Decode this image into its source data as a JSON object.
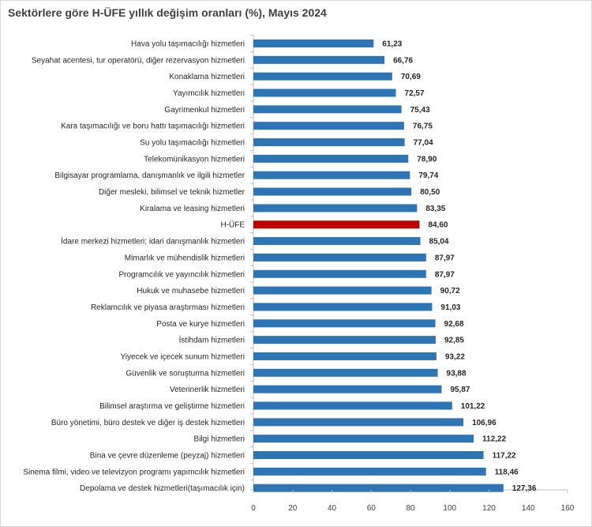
{
  "title": "Sektörlere göre H-ÜFE yıllık değişim oranları (%), Mayıs 2024",
  "chart_data": {
    "type": "bar",
    "orientation": "horizontal",
    "title": "Sektörlere göre H-ÜFE yıllık değişim oranları (%), Mayıs 2024",
    "categories": [
      "Hava yolu taşımacılığı hizmetleri",
      "Seyahat acentesi, tur operatörü, diğer rezervasyon hizmetleri",
      "Konaklama hizmetleri",
      "Yayımcılık hizmetleri",
      "Gayrimenkul hizmetleri",
      "Kara taşımacılığı ve boru hattı taşımacılığı hizmetleri",
      "Su yolu taşımacılığı hizmetleri",
      "Telekomünikasyon hizmetleri",
      "Bilgisayar programlama, danışmanlık ve ilgili hizmetler",
      "Diğer mesleki, bilimsel ve teknik hizmetler",
      "Kiralama ve leasing hizmetleri",
      "H-ÜFE",
      "İdare merkezi hizmetleri; idari danışmanlık hizmetleri",
      "Mimarlık ve mühendislik hizmetleri",
      "Programcılık ve yayıncılık hizmetleri",
      "Hukuk ve muhasebe hizmetleri",
      "Reklamcılık ve piyasa araştırması hizmetleri",
      "Posta ve kurye hizmetleri",
      "İstihdam hizmetleri",
      "Yiyecek ve içecek sunum hizmetleri",
      "Güvenlik ve soruşturma hizmetleri",
      "Veterinerlik hizmetleri",
      "Bilimsel araştırma ve geliştirme hizmetleri",
      "Büro yönetimi, büro destek ve diğer iş destek hizmetleri",
      "Bilgi hizmetleri",
      "Bina ve çevre düzenleme (peyzaj) hizmetleri",
      "Sinema filmi, video ve televizyon programı yapımcılık hizmetleri",
      "Depolama ve destek hizmetleri(taşımacılık için)"
    ],
    "values": [
      61.23,
      66.76,
      70.69,
      72.57,
      75.43,
      76.75,
      77.04,
      78.9,
      79.74,
      80.5,
      83.35,
      84.6,
      85.04,
      87.97,
      87.97,
      90.72,
      91.03,
      92.68,
      92.85,
      93.22,
      93.88,
      95.87,
      101.22,
      106.96,
      112.22,
      117.22,
      118.46,
      127.36
    ],
    "value_labels": [
      "61,23",
      "66,76",
      "70,69",
      "72,57",
      "75,43",
      "76,75",
      "77,04",
      "78,90",
      "79,74",
      "80,50",
      "83,35",
      "84,60",
      "85,04",
      "87,97",
      "87,97",
      "90,72",
      "91,03",
      "92,68",
      "92,85",
      "93,22",
      "93,88",
      "95,87",
      "101,22",
      "106,96",
      "112,22",
      "117,22",
      "118,46",
      "127,36"
    ],
    "highlight_category": "H-ÜFE",
    "xlim": [
      0,
      160
    ],
    "xticks": [
      0,
      20,
      40,
      60,
      80,
      100,
      120,
      140,
      160
    ],
    "grid": false,
    "colors": {
      "bar": "#2e75b6",
      "highlight": "#c00000",
      "axis": "#bfbfbf",
      "text": "#262626"
    }
  }
}
